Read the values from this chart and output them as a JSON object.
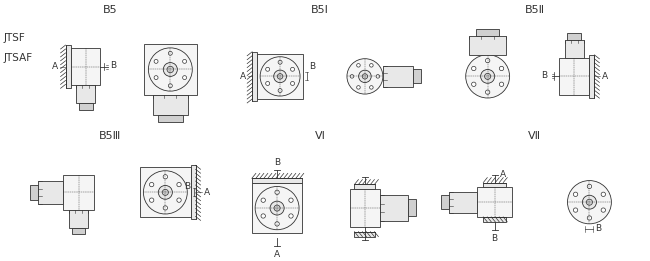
{
  "bg_color": "#ffffff",
  "line_color": "#333333",
  "fill_light": "#f5f5f5",
  "fill_mid": "#e8e8e8",
  "fill_dark": "#d0d0d0",
  "label_font": 8,
  "small_font": 6.5,
  "panels": {
    "B5": {
      "ox": 30,
      "oy": 5,
      "label": "B5"
    },
    "B5I": {
      "ox": 245,
      "oy": 5,
      "label": "B5I"
    },
    "B5II": {
      "ox": 460,
      "oy": 5,
      "label": "B5Ⅱ"
    },
    "B5III": {
      "ox": 30,
      "oy": 133,
      "label": "B5Ⅲ"
    },
    "VI": {
      "ox": 245,
      "oy": 133,
      "label": "VⅠ"
    },
    "VII": {
      "ox": 460,
      "oy": 133,
      "label": "VⅡ"
    }
  }
}
